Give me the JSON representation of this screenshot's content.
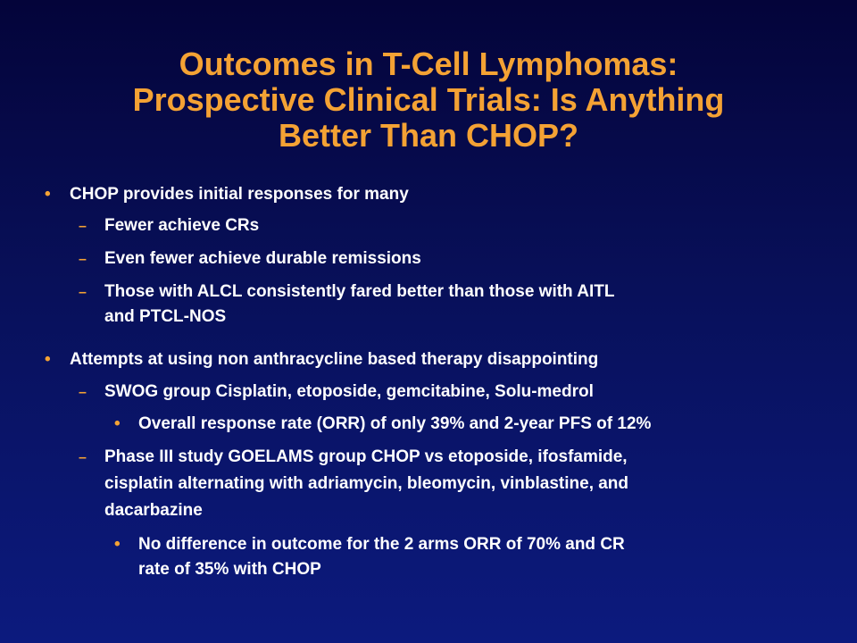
{
  "slide": {
    "title_lines": [
      "Outcomes in T-Cell Lymphomas:",
      "Prospective Clinical Trials: Is Anything",
      "Better Than CHOP?"
    ],
    "bullets": [
      {
        "text": "CHOP provides initial responses for many",
        "subs": [
          {
            "lines": [
              "Fewer achieve CRs"
            ]
          },
          {
            "lines": [
              "Even fewer achieve durable remissions"
            ]
          },
          {
            "lines": [
              "Those with ALCL consistently fared better than those with AITL",
              "and PTCL-NOS"
            ]
          }
        ]
      },
      {
        "text": "Attempts at using non anthracycline  based therapy disappointing",
        "subs": [
          {
            "lines": [
              "SWOG group Cisplatin, etoposide, gemcitabine, Solu-medrol"
            ],
            "subsubs": [
              {
                "lines": [
                  "Overall response rate (ORR) of only 39% and 2-year PFS of 12%"
                ]
              }
            ]
          },
          {
            "lines": [
              "Phase III study GOELAMS group CHOP vs etoposide, ifosfamide,",
              "cisplatin alternating with adriamycin, bleomycin, vinblastine, and",
              "dacarbazine"
            ],
            "subsubs": [
              {
                "lines": [
                  "No difference in outcome for the 2 arms ORR of 70% and CR",
                  "rate of 35% with CHOP"
                ]
              }
            ]
          }
        ]
      }
    ]
  }
}
